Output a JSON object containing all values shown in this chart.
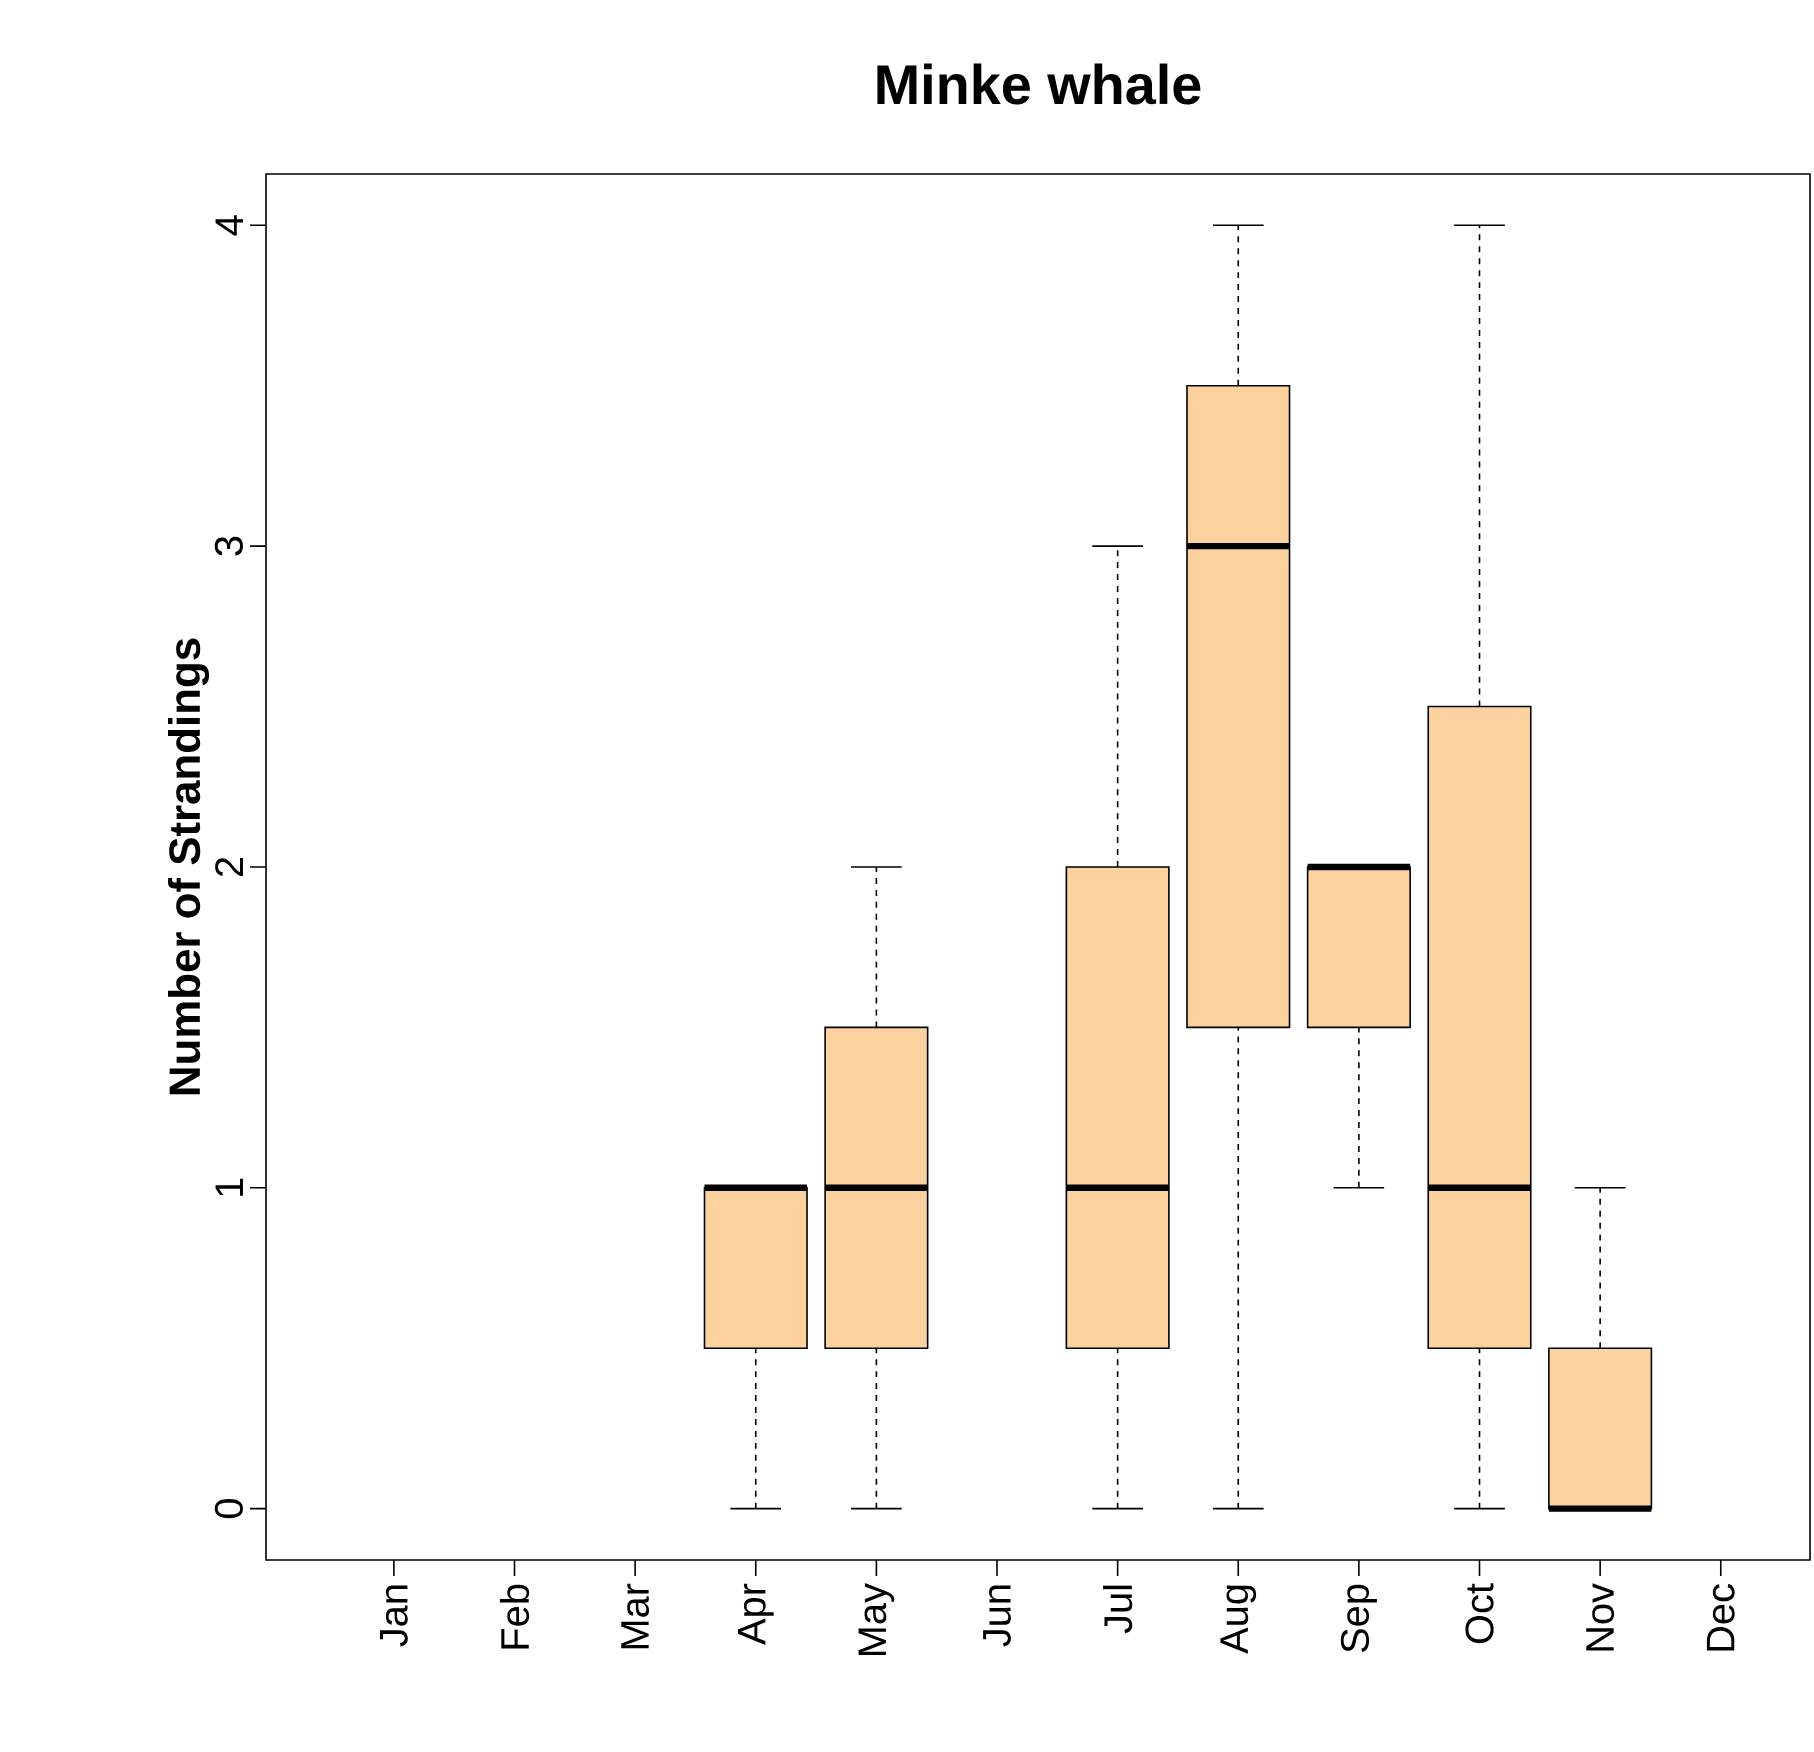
{
  "chart_data": {
    "type": "box",
    "title": "Minke whale",
    "ylabel": "Number of Strandings",
    "categories": [
      "Jan",
      "Feb",
      "Mar",
      "Apr",
      "May",
      "Jun",
      "Jul",
      "Aug",
      "Sep",
      "Oct",
      "Nov",
      "Dec"
    ],
    "boxes": [
      null,
      null,
      null,
      {
        "low": 0,
        "q1": 0.5,
        "median": 1,
        "q3": 1,
        "high": 1
      },
      {
        "low": 0,
        "q1": 0.5,
        "median": 1,
        "q3": 1.5,
        "high": 2
      },
      null,
      {
        "low": 0,
        "q1": 0.5,
        "median": 1,
        "q3": 2,
        "high": 3
      },
      {
        "low": 0,
        "q1": 1.5,
        "median": 3,
        "q3": 3.5,
        "high": 4
      },
      {
        "low": 1,
        "q1": 1.5,
        "median": 2,
        "q3": 2,
        "high": 2
      },
      {
        "low": 0,
        "q1": 0.5,
        "median": 1,
        "q3": 2.5,
        "high": 4
      },
      {
        "low": 0,
        "q1": 0,
        "median": 0,
        "q3": 0.5,
        "high": 1
      },
      null
    ],
    "color": "#fcd29f",
    "ylim": [
      -0.16,
      4.16
    ],
    "yticks": [
      0,
      1,
      2,
      3,
      4
    ]
  }
}
